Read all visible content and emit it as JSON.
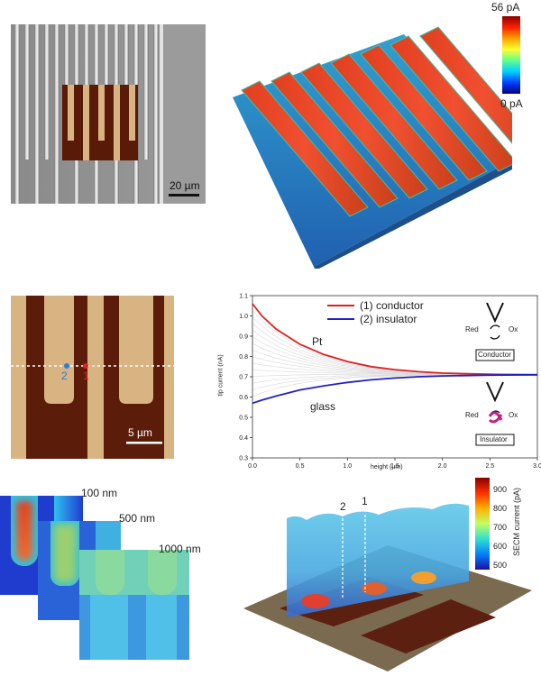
{
  "panel_a": {
    "scale_bar": "20 µm",
    "colorbar_max": "56 pA",
    "colorbar_min": "0 pA"
  },
  "panel_b": {
    "scale_bar": "5 µm",
    "marker_1": "1",
    "marker_2": "2"
  },
  "panel_c": {
    "slices": [
      "100 nm",
      "500 nm",
      "1000 nm"
    ]
  },
  "panel_d": {
    "colorbar_ticks": [
      "900",
      "800",
      "700",
      "600",
      "500"
    ],
    "colorbar_label": "SECM current (pA)",
    "line_1": "1",
    "line_2": "2"
  },
  "chart_data": {
    "type": "line",
    "xlabel": "height (µm)",
    "ylabel": "tip current (nA)",
    "xlim": [
      0,
      3.0
    ],
    "ylim": [
      0.3,
      1.1
    ],
    "xticks": [
      "0.0",
      "0.5",
      "1.0",
      "1.5",
      "2.0",
      "2.5",
      "3.0"
    ],
    "yticks": [
      "0.3",
      "0.4",
      "0.5",
      "0.6",
      "0.7",
      "0.8",
      "0.9",
      "1.0",
      "1.1"
    ],
    "legend_position": "top-center",
    "annotations": {
      "top": "Pt",
      "bottom": "glass",
      "red": "Red",
      "ox": "Ox",
      "red2": "Red",
      "ox2": "Ox",
      "box_top": "Conductor",
      "box_bottom": "Insulator"
    },
    "series": [
      {
        "name": "(1) conductor",
        "color": "#e02020",
        "x": [
          0,
          0.1,
          0.25,
          0.5,
          0.75,
          1.0,
          1.25,
          1.5,
          1.75,
          2.0,
          2.5,
          3.0
        ],
        "y": [
          1.06,
          1.0,
          0.935,
          0.86,
          0.81,
          0.775,
          0.75,
          0.735,
          0.725,
          0.718,
          0.712,
          0.71
        ]
      },
      {
        "name": "(2) insulator",
        "color": "#2020c8",
        "x": [
          0,
          0.1,
          0.25,
          0.5,
          0.75,
          1.0,
          1.25,
          1.5,
          1.75,
          2.0,
          2.5,
          3.0
        ],
        "y": [
          0.57,
          0.585,
          0.605,
          0.635,
          0.655,
          0.672,
          0.685,
          0.694,
          0.7,
          0.704,
          0.708,
          0.71
        ]
      }
    ]
  }
}
